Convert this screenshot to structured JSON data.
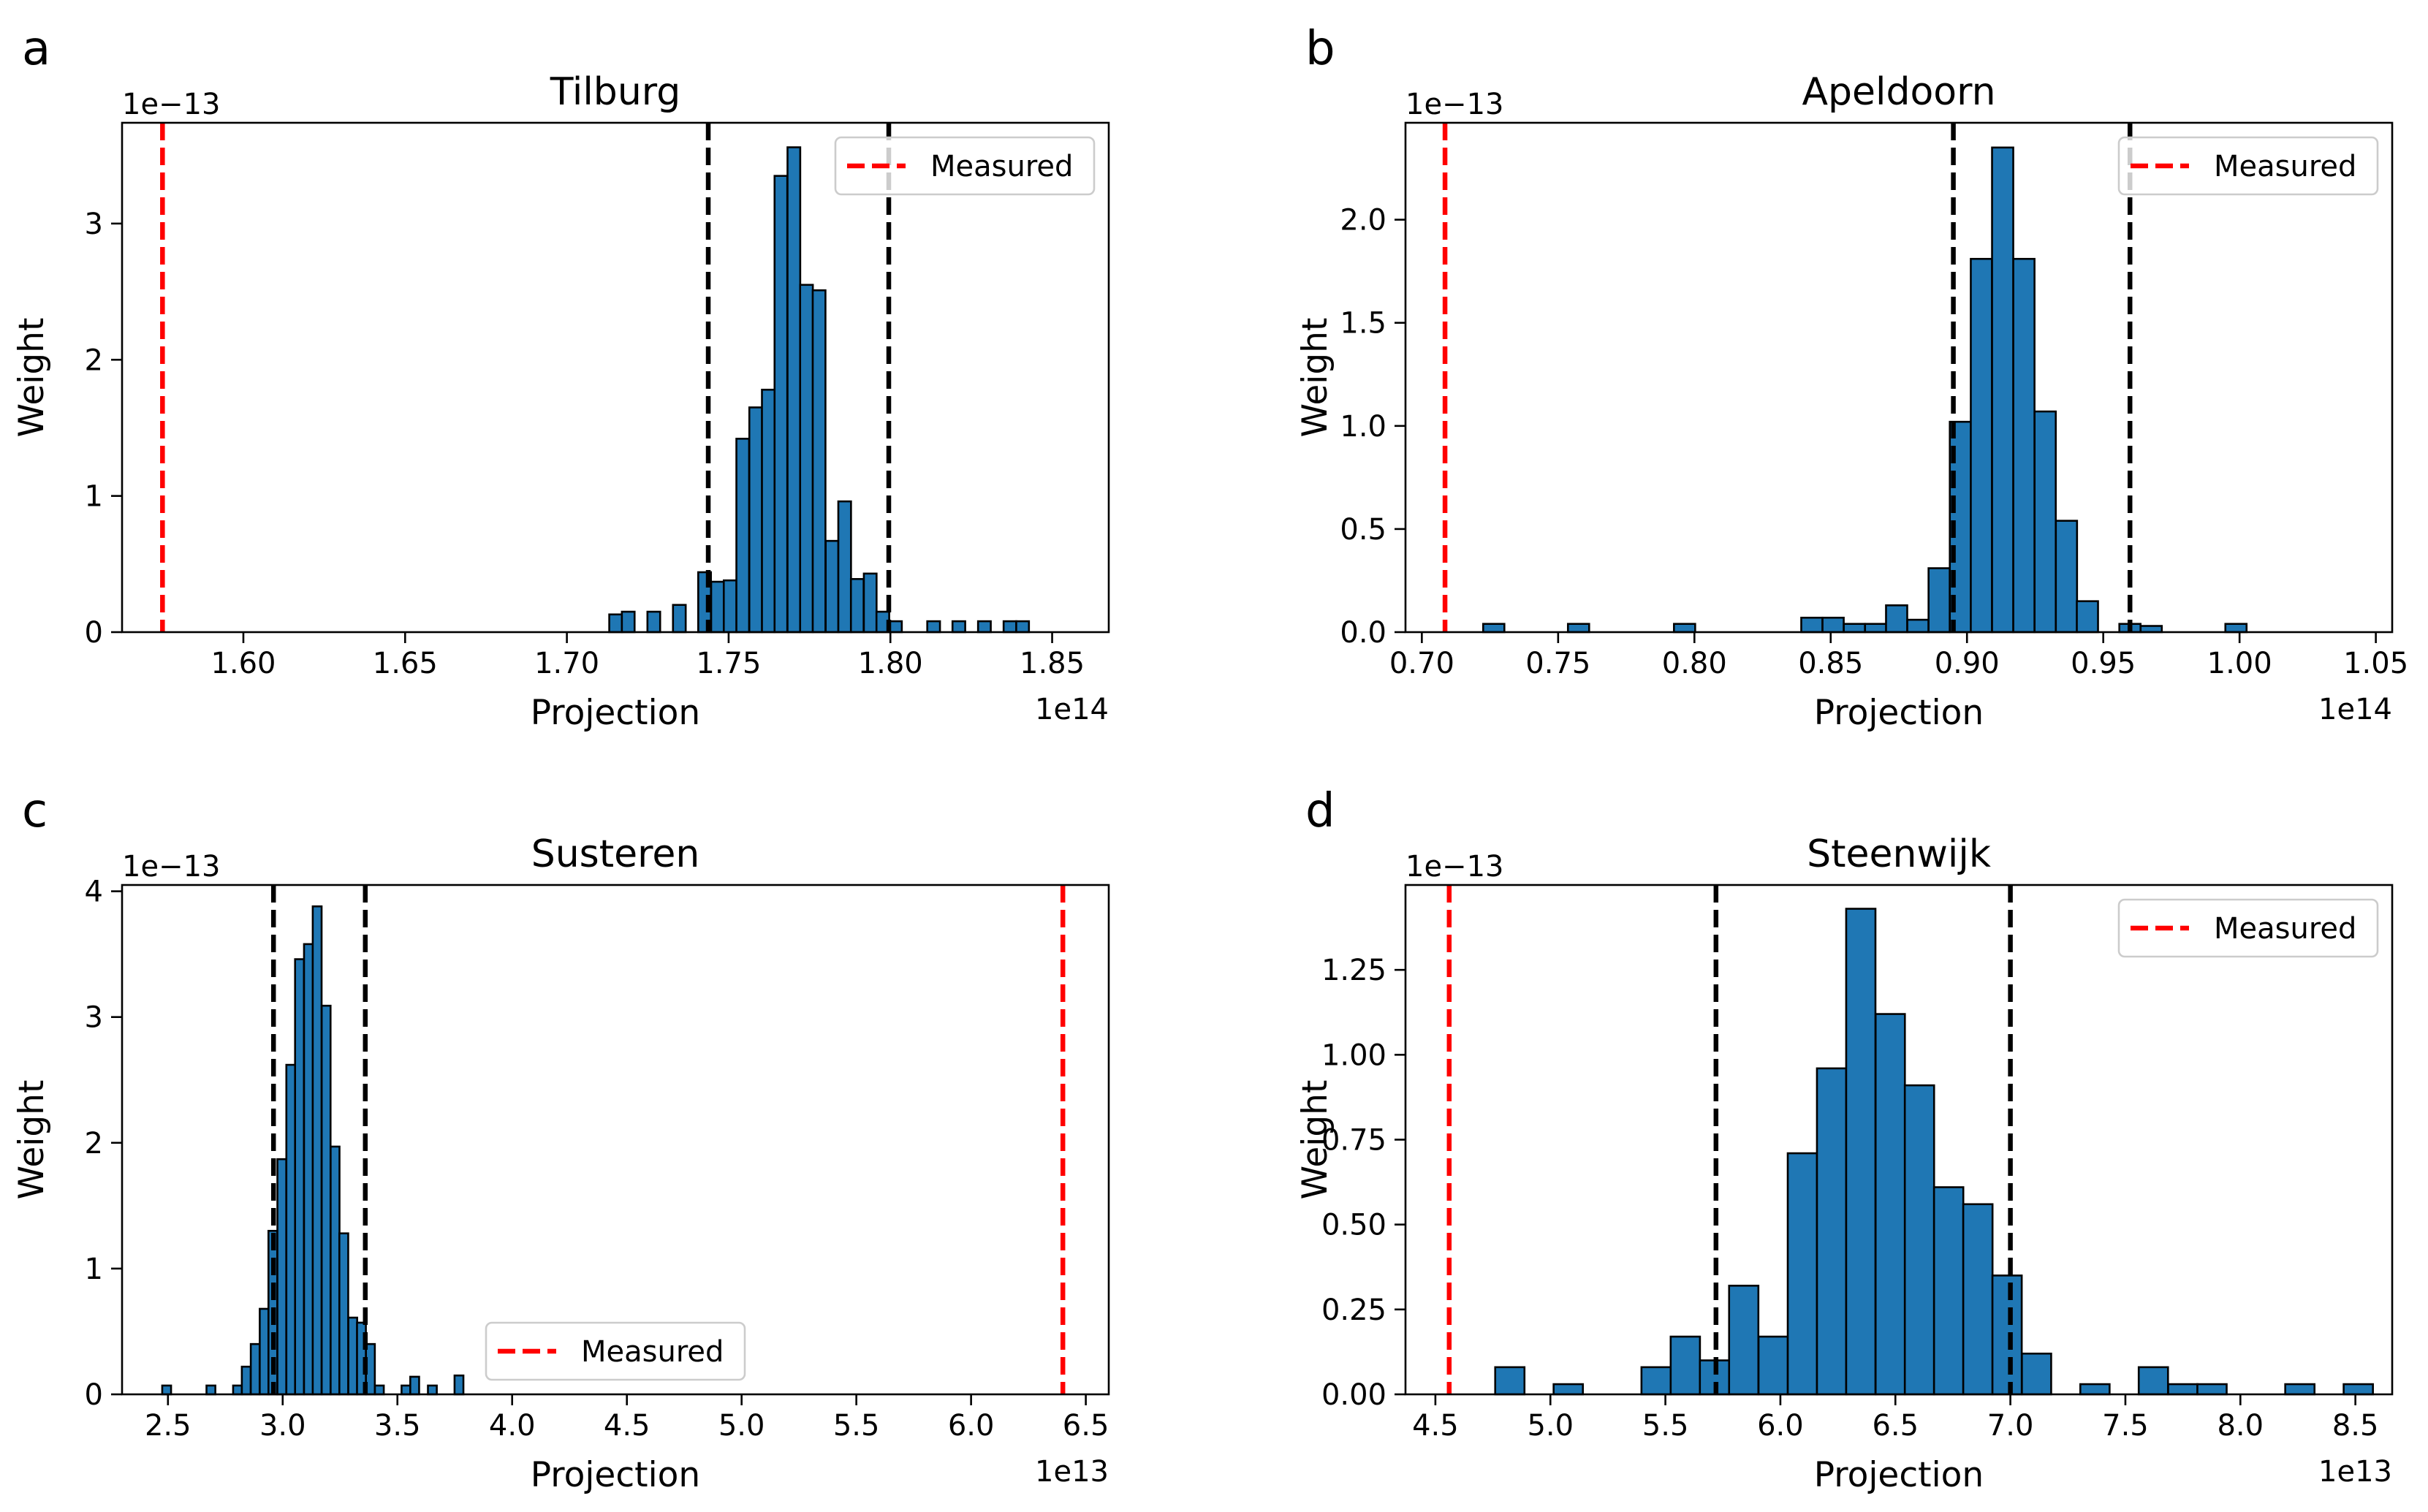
{
  "figure": {
    "colors": {
      "bar": "#1f77b4",
      "bar_edge": "#000000",
      "measured": "#ff0000",
      "bounds": "#000000"
    }
  },
  "chart_data": [
    {
      "type": "bar",
      "panel_label": "a",
      "title": "Tilburg",
      "xlabel": "Projection",
      "ylabel": "Weight",
      "x_multiplier": "1e14",
      "y_multiplier": "1e−13",
      "xlim": [
        1.5625,
        1.8675
      ],
      "ylim": [
        0,
        3.74
      ],
      "xticks": [
        1.6,
        1.65,
        1.7,
        1.75,
        1.8,
        1.85
      ],
      "xtick_labels": [
        "1.60",
        "1.65",
        "1.70",
        "1.75",
        "1.80",
        "1.85"
      ],
      "yticks": [
        0,
        1,
        2,
        3
      ],
      "ytick_labels": [
        "0",
        "1",
        "2",
        "3"
      ],
      "bin_width": 0.00393,
      "bins": [
        [
          1.7131,
          0.13
        ],
        [
          1.717,
          0.15
        ],
        [
          1.7249,
          0.15
        ],
        [
          1.7328,
          0.2
        ],
        [
          1.7406,
          0.44
        ],
        [
          1.7446,
          0.37
        ],
        [
          1.7485,
          0.38
        ],
        [
          1.7524,
          1.42
        ],
        [
          1.7564,
          1.65
        ],
        [
          1.7603,
          1.78
        ],
        [
          1.7642,
          3.35
        ],
        [
          1.7682,
          3.56
        ],
        [
          1.7721,
          2.55
        ],
        [
          1.776,
          2.51
        ],
        [
          1.78,
          0.67
        ],
        [
          1.7839,
          0.96
        ],
        [
          1.7878,
          0.39
        ],
        [
          1.7918,
          0.43
        ],
        [
          1.7957,
          0.15
        ],
        [
          1.7996,
          0.08
        ],
        [
          1.8114,
          0.08
        ],
        [
          1.8192,
          0.08
        ],
        [
          1.8271,
          0.08
        ],
        [
          1.835,
          0.08
        ],
        [
          1.8389,
          0.08
        ]
      ],
      "measured": 1.575,
      "bounds": [
        1.7437,
        1.7995
      ],
      "legend": {
        "label": "Measured",
        "position": "upper right"
      }
    },
    {
      "type": "bar",
      "panel_label": "b",
      "title": "Apeldoorn",
      "xlabel": "Projection",
      "ylabel": "Weight",
      "x_multiplier": "1e14",
      "y_multiplier": "1e−13",
      "xlim": [
        0.694,
        1.056
      ],
      "ylim": [
        0,
        2.47
      ],
      "xticks": [
        0.7,
        0.75,
        0.8,
        0.85,
        0.9,
        0.95,
        1.0,
        1.05
      ],
      "xtick_labels": [
        "0.70",
        "0.75",
        "0.80",
        "0.85",
        "0.90",
        "0.95",
        "1.00",
        "1.05"
      ],
      "yticks": [
        0.0,
        0.5,
        1.0,
        1.5,
        2.0
      ],
      "ytick_labels": [
        "0.0",
        "0.5",
        "1.0",
        "1.5",
        "2.0"
      ],
      "bin_width": 0.00778,
      "bins": [
        [
          0.7225,
          0.04
        ],
        [
          0.7536,
          0.04
        ],
        [
          0.7925,
          0.04
        ],
        [
          0.8392,
          0.07
        ],
        [
          0.847,
          0.07
        ],
        [
          0.8548,
          0.04
        ],
        [
          0.8626,
          0.04
        ],
        [
          0.8703,
          0.13
        ],
        [
          0.8781,
          0.06
        ],
        [
          0.8859,
          0.31
        ],
        [
          0.8937,
          1.02
        ],
        [
          0.9014,
          1.81
        ],
        [
          0.9092,
          2.35
        ],
        [
          0.917,
          1.81
        ],
        [
          0.9248,
          1.07
        ],
        [
          0.9326,
          0.54
        ],
        [
          0.9403,
          0.15
        ],
        [
          0.9559,
          0.04
        ],
        [
          0.9637,
          0.03
        ],
        [
          0.9948,
          0.04
        ]
      ],
      "measured": 0.7085,
      "bounds": [
        0.895,
        0.9598
      ],
      "legend": {
        "label": "Measured",
        "position": "upper right"
      }
    },
    {
      "type": "bar",
      "panel_label": "c",
      "title": "Susteren",
      "xlabel": "Projection",
      "ylabel": "Weight",
      "x_multiplier": "1e13",
      "y_multiplier": "1e−13",
      "xlim": [
        2.3,
        6.6
      ],
      "ylim": [
        0,
        4.05
      ],
      "xticks": [
        2.5,
        3.0,
        3.5,
        4.0,
        4.5,
        5.0,
        5.5,
        6.0,
        6.5
      ],
      "xtick_labels": [
        "2.5",
        "3.0",
        "3.5",
        "4.0",
        "4.5",
        "5.0",
        "5.5",
        "6.0",
        "6.5"
      ],
      "yticks": [
        0,
        1,
        2,
        3,
        4
      ],
      "ytick_labels": [
        "0",
        "1",
        "2",
        "3",
        "4"
      ],
      "bin_width": 0.0386,
      "bins": [
        [
          2.475,
          0.07
        ],
        [
          2.668,
          0.07
        ],
        [
          2.784,
          0.07
        ],
        [
          2.822,
          0.22
        ],
        [
          2.861,
          0.4
        ],
        [
          2.9,
          0.68
        ],
        [
          2.938,
          1.3
        ],
        [
          2.977,
          1.87
        ],
        [
          3.016,
          2.62
        ],
        [
          3.054,
          3.46
        ],
        [
          3.093,
          3.58
        ],
        [
          3.131,
          3.88
        ],
        [
          3.17,
          3.09
        ],
        [
          3.209,
          1.97
        ],
        [
          3.247,
          1.28
        ],
        [
          3.286,
          0.61
        ],
        [
          3.324,
          0.57
        ],
        [
          3.363,
          0.4
        ],
        [
          3.402,
          0.07
        ],
        [
          3.518,
          0.07
        ],
        [
          3.556,
          0.14
        ],
        [
          3.633,
          0.07
        ],
        [
          3.749,
          0.15
        ]
      ],
      "measured": 6.4,
      "bounds": [
        2.96,
        3.36
      ],
      "legend": {
        "label": "Measured",
        "position": "lower center"
      }
    },
    {
      "type": "bar",
      "panel_label": "d",
      "title": "Steenwijk",
      "xlabel": "Projection",
      "ylabel": "Weight",
      "x_multiplier": "1e13",
      "y_multiplier": "1e−13",
      "xlim": [
        4.37,
        8.66
      ],
      "ylim": [
        0,
        1.5
      ],
      "xticks": [
        4.5,
        5.0,
        5.5,
        6.0,
        6.5,
        7.0,
        7.5,
        8.0,
        8.5
      ],
      "xtick_labels": [
        "4.5",
        "5.0",
        "5.5",
        "6.0",
        "6.5",
        "7.0",
        "7.5",
        "8.0",
        "8.5"
      ],
      "yticks": [
        0.0,
        0.25,
        0.5,
        0.75,
        1.0,
        1.25
      ],
      "ytick_labels": [
        "0.00",
        "0.25",
        "0.50",
        "0.75",
        "1.00",
        "1.25"
      ],
      "bin_width": 0.1273,
      "bins": [
        [
          4.76,
          0.08
        ],
        [
          5.014,
          0.03
        ],
        [
          5.396,
          0.08
        ],
        [
          5.523,
          0.17
        ],
        [
          5.65,
          0.1
        ],
        [
          5.777,
          0.32
        ],
        [
          5.905,
          0.17
        ],
        [
          6.032,
          0.71
        ],
        [
          6.159,
          0.96
        ],
        [
          6.286,
          1.43
        ],
        [
          6.414,
          1.12
        ],
        [
          6.541,
          0.91
        ],
        [
          6.668,
          0.61
        ],
        [
          6.795,
          0.56
        ],
        [
          6.922,
          0.35
        ],
        [
          7.05,
          0.12
        ],
        [
          7.304,
          0.03
        ],
        [
          7.558,
          0.08
        ],
        [
          7.686,
          0.03
        ],
        [
          7.813,
          0.03
        ],
        [
          8.195,
          0.03
        ],
        [
          8.449,
          0.03
        ]
      ],
      "measured": 4.56,
      "bounds": [
        5.72,
        7.0
      ],
      "legend": {
        "label": "Measured",
        "position": "upper right"
      }
    }
  ]
}
